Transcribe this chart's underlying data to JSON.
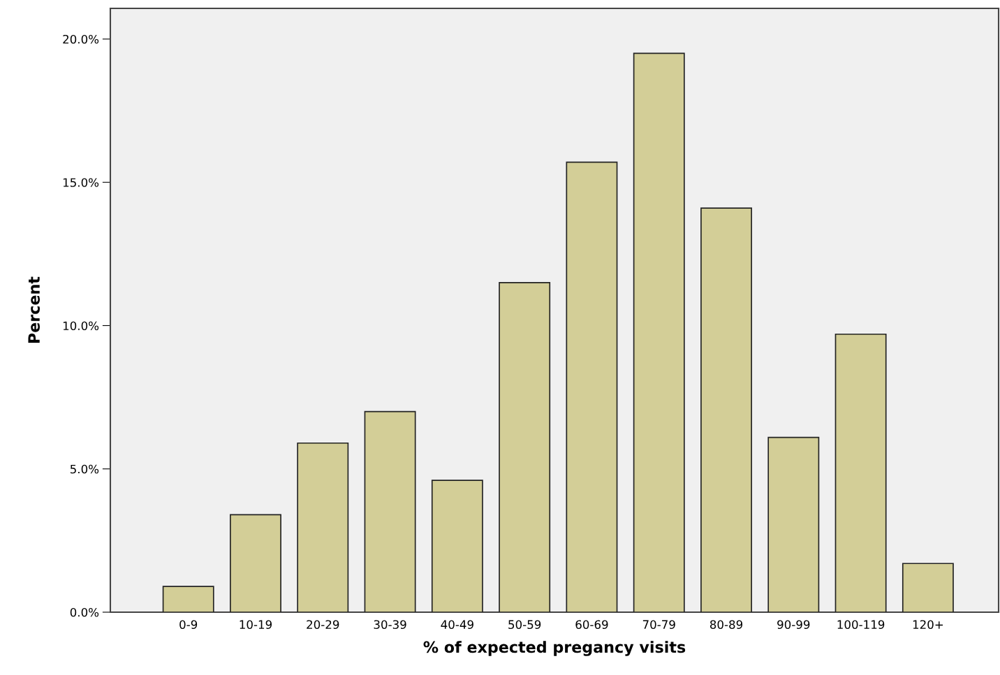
{
  "chart_data": {
    "type": "bar",
    "xlabel": "% of expected pregancy visits",
    "ylabel": "Percent",
    "categories": [
      "0-9",
      "10-19",
      "20-29",
      "30-39",
      "40-49",
      "50-59",
      "60-69",
      "70-79",
      "80-89",
      "90-99",
      "100-119",
      "120+"
    ],
    "values": [
      0.9,
      3.4,
      5.9,
      7.0,
      4.6,
      11.5,
      15.7,
      19.5,
      14.1,
      6.1,
      9.7,
      1.7
    ],
    "color": "#d3ce97",
    "ylim": [
      0,
      21.07
    ],
    "yticks": [
      {
        "value": 0,
        "label": "0.0%"
      },
      {
        "value": 5,
        "label": "5.0%"
      },
      {
        "value": 10,
        "label": "10.0%"
      },
      {
        "value": 15,
        "label": "15.0%"
      },
      {
        "value": 20,
        "label": "20.0%"
      }
    ],
    "grid": false,
    "legend": false
  }
}
